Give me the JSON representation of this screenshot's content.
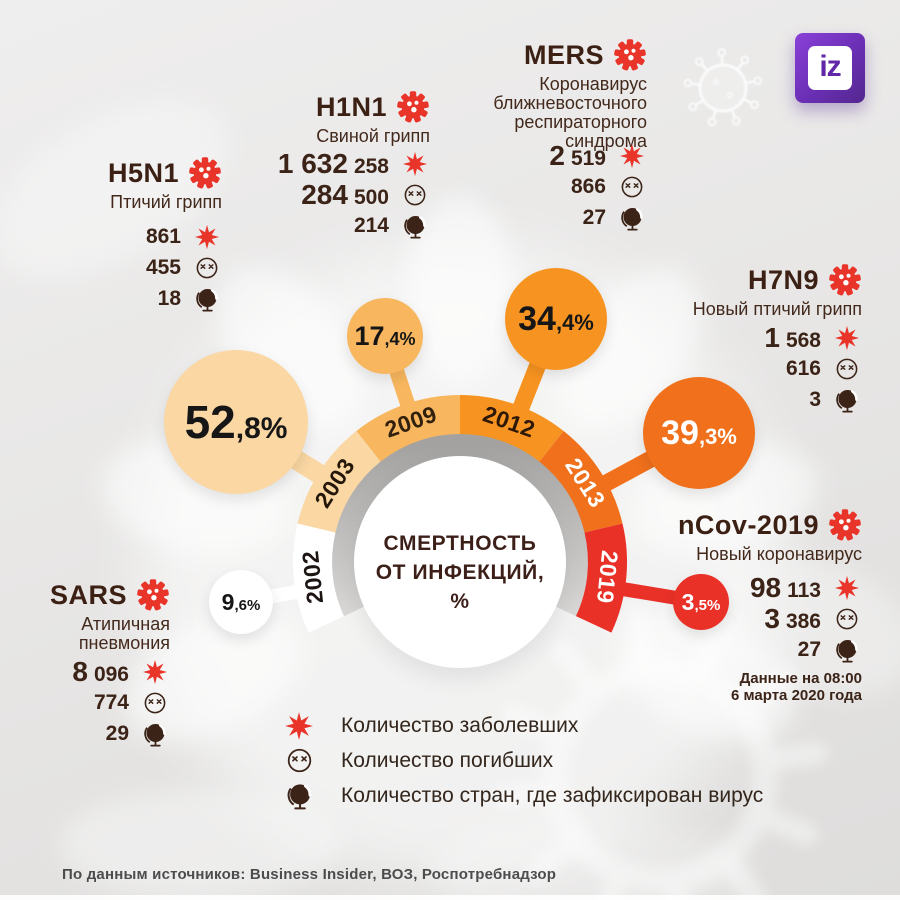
{
  "brand": {
    "logo_text": "iz"
  },
  "center": {
    "lines": [
      "СМЕРТНОСТЬ",
      "ОТ ИНФЕКЦИЙ,",
      "%"
    ]
  },
  "chart_data": {
    "type": "donut",
    "title": "Смертность от инфекций, %",
    "unit": "%",
    "categories": [
      "2002",
      "2003",
      "2009",
      "2012",
      "2013",
      "2019"
    ],
    "values": [
      9.6,
      52.8,
      17.4,
      34.4,
      39.3,
      3.5
    ],
    "segments": [
      {
        "year": "2002",
        "virus": "SARS",
        "value": 9.6,
        "label_main": "9",
        "label_rest": ",6%",
        "color": "#ffffff",
        "year_text": "#1c1512",
        "bubble_text": "#161616"
      },
      {
        "year": "2003",
        "virus": "H5N1",
        "value": 52.8,
        "label_main": "52",
        "label_rest": ",8%",
        "color": "#fad7a3",
        "year_text": "#241709",
        "bubble_text": "#161616"
      },
      {
        "year": "2009",
        "virus": "H1N1",
        "value": 17.4,
        "label_main": "17",
        "label_rest": ",4%",
        "color": "#f8b75f",
        "year_text": "#32200f",
        "bubble_text": "#161616"
      },
      {
        "year": "2012",
        "virus": "MERS",
        "value": 34.4,
        "label_main": "34",
        "label_rest": ",4%",
        "color": "#f79421",
        "year_text": "#2e1808",
        "bubble_text": "#161616"
      },
      {
        "year": "2013",
        "virus": "H7N9",
        "value": 39.3,
        "label_main": "39",
        "label_rest": ",3%",
        "color": "#f0701c",
        "year_text": "#ffffff",
        "bubble_text": "#ffffff"
      },
      {
        "year": "2019",
        "virus": "nCov-2019",
        "value": 3.5,
        "label_main": "3",
        "label_rest": ",5%",
        "color": "#e93128",
        "year_text": "#ffffff",
        "bubble_text": "#ffffff"
      }
    ],
    "arc_hint": {
      "start_deg": 205,
      "end_deg": -25,
      "grid": false,
      "legend_position": "bottom"
    }
  },
  "viruses": [
    {
      "id": "h5n1",
      "name": "H5N1",
      "subtitle": "Птичий грипп",
      "stats": [
        {
          "big": "",
          "small": "861",
          "icon": "infected-icon"
        },
        {
          "big": "",
          "small": "455",
          "icon": "dead-icon"
        },
        {
          "big": "",
          "small": "18",
          "icon": "globe-icon"
        }
      ]
    },
    {
      "id": "h1n1",
      "name": "H1N1",
      "subtitle": "Свиной грипп",
      "stats": [
        {
          "big": "1 632",
          "small": "258",
          "icon": "infected-icon"
        },
        {
          "big": "284",
          "small": "500",
          "icon": "dead-icon"
        },
        {
          "big": "",
          "small": "214",
          "icon": "globe-icon"
        }
      ]
    },
    {
      "id": "mers",
      "name": "MERS",
      "subtitle": "Коронавирус\nближневосточного\nреспираторного\nсиндрома",
      "stats": [
        {
          "big": "2",
          "small": "519",
          "icon": "infected-icon"
        },
        {
          "big": "",
          "small": "866",
          "icon": "dead-icon"
        },
        {
          "big": "",
          "small": "27",
          "icon": "globe-icon"
        }
      ]
    },
    {
      "id": "h7n9",
      "name": "H7N9",
      "subtitle": "Новый птичий грипп",
      "stats": [
        {
          "big": "1",
          "small": "568",
          "icon": "infected-icon"
        },
        {
          "big": "",
          "small": "616",
          "icon": "dead-icon"
        },
        {
          "big": "",
          "small": "3",
          "icon": "globe-icon"
        }
      ]
    },
    {
      "id": "ncov",
      "name": "nCov-2019",
      "subtitle": "Новый коронавирус",
      "stats": [
        {
          "big": "98",
          "small": "113",
          "icon": "infected-icon"
        },
        {
          "big": "3",
          "small": "386",
          "icon": "dead-icon"
        },
        {
          "big": "",
          "small": "27",
          "icon": "globe-icon"
        }
      ]
    },
    {
      "id": "sars",
      "name": "SARS",
      "subtitle": "Атипичная\nпневмония",
      "stats": [
        {
          "big": "8",
          "small": "096",
          "icon": "infected-icon"
        },
        {
          "big": "",
          "small": "774",
          "icon": "dead-icon"
        },
        {
          "big": "",
          "small": "29",
          "icon": "globe-icon"
        }
      ]
    }
  ],
  "note": {
    "line1": "Данные на 08:00",
    "line2": "6 марта 2020 года"
  },
  "legend": [
    {
      "icon": "infected-icon",
      "label": "Количество заболевших"
    },
    {
      "icon": "dead-icon",
      "label": "Количество погибших"
    },
    {
      "icon": "globe-icon",
      "label": "Количество стран, где зафиксирован вирус"
    }
  ],
  "source": "По данным источников: Business Insider, ВОЗ, Роспотребнадзор",
  "colors": {
    "accent_red": "#e9342a",
    "ink": "#3b2317",
    "gray_ring": "#b0afae"
  }
}
